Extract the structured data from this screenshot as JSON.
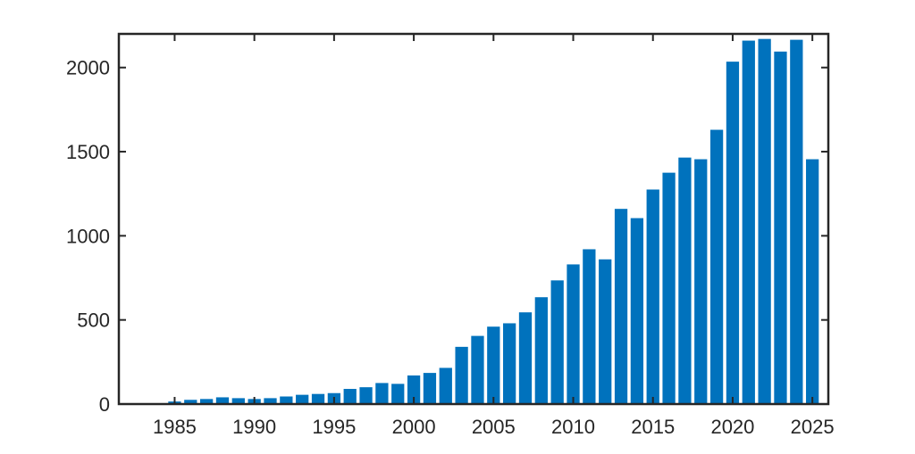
{
  "chart_data": {
    "type": "bar",
    "title": "",
    "xlabel": "",
    "ylabel": "",
    "x": [
      1984,
      1985,
      1986,
      1987,
      1988,
      1989,
      1990,
      1991,
      1992,
      1993,
      1994,
      1995,
      1996,
      1997,
      1998,
      1999,
      2000,
      2001,
      2002,
      2003,
      2004,
      2005,
      2006,
      2007,
      2008,
      2009,
      2010,
      2011,
      2012,
      2013,
      2014,
      2015,
      2016,
      2017,
      2018,
      2019,
      2020,
      2021,
      2022,
      2023,
      2024,
      2025
    ],
    "values": [
      5,
      15,
      25,
      30,
      40,
      35,
      30,
      35,
      45,
      55,
      60,
      65,
      90,
      100,
      125,
      120,
      170,
      185,
      215,
      340,
      405,
      460,
      480,
      545,
      635,
      735,
      830,
      920,
      860,
      1160,
      1105,
      1275,
      1375,
      1465,
      1455,
      1630,
      2035,
      2160,
      2170,
      2095,
      2165,
      1455
    ],
    "xlim": [
      1981.5,
      2026
    ],
    "ylim": [
      0,
      2200
    ],
    "xticks": [
      1985,
      1990,
      1995,
      2000,
      2005,
      2010,
      2015,
      2020,
      2025
    ],
    "yticks": [
      0,
      500,
      1000,
      1500,
      2000
    ],
    "xtick_labels": [
      "1985",
      "1990",
      "1995",
      "2000",
      "2005",
      "2010",
      "2015",
      "2020",
      "2025"
    ],
    "ytick_labels": [
      "0",
      "500",
      "1000",
      "1500",
      "2000"
    ],
    "bar_color": "#0072BD",
    "axis_color": "#262626",
    "grid": false,
    "legend": "none"
  }
}
